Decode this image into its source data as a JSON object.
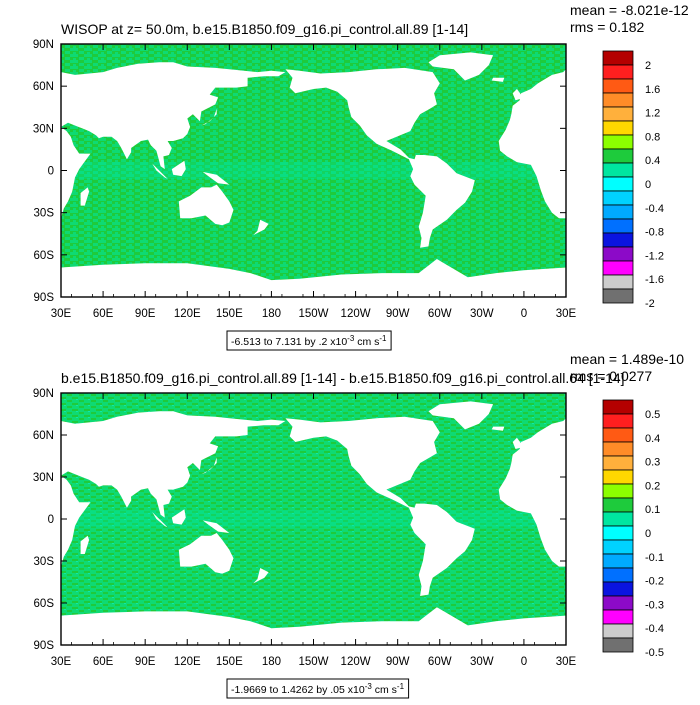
{
  "chart_data": [
    {
      "type": "heatmap",
      "title": "WISOP at z=  50.0m, b.e15.B1850.f09_g16.pi_control.all.89 [1-14]",
      "stats": {
        "mean": "mean = -8.021e-12",
        "rms": "rms = 0.182"
      },
      "x_ticks": [
        "30E",
        "60E",
        "90E",
        "120E",
        "150E",
        "180",
        "150W",
        "120W",
        "90W",
        "60W",
        "30W",
        "0",
        "30E"
      ],
      "y_ticks": [
        "90N",
        "60N",
        "30N",
        "0",
        "30S",
        "60S",
        "90S"
      ],
      "xlim": [
        30,
        390
      ],
      "ylim": [
        -90,
        90
      ],
      "range_label": "-6.513 to 7.131 by .2 x10",
      "range_exp": "-3",
      "range_unit": " cm s",
      "range_unit_exp": "-1",
      "colorbar": {
        "labels": [
          "2",
          "1.6",
          "1.2",
          "0.8",
          "0.4",
          "0",
          "-0.4",
          "-0.8",
          "-1.2",
          "-1.6",
          "-2"
        ],
        "colors": [
          "#b40000",
          "#ff1f1f",
          "#ff5a14",
          "#ff8c28",
          "#ffb03c",
          "#ffd700",
          "#8cff00",
          "#1ecb3c",
          "#00e6a0",
          "#00ffff",
          "#00d2ff",
          "#00aaff",
          "#0070ff",
          "#0a14e0",
          "#8c0ac8",
          "#ff00ff",
          "#cccccc",
          "#707070"
        ]
      },
      "grid": false
    },
    {
      "type": "heatmap",
      "title": "b.e15.B1850.f09_g16.pi_control.all.89 [1-14] - b.e15.B1850.f09_g16.pi_control.all.64 [1-14]",
      "stats": {
        "mean": "mean = 1.489e-10",
        "rms": "rms = 0.0277"
      },
      "x_ticks": [
        "30E",
        "60E",
        "90E",
        "120E",
        "150E",
        "180",
        "150W",
        "120W",
        "90W",
        "60W",
        "30W",
        "0",
        "30E"
      ],
      "y_ticks": [
        "90N",
        "60N",
        "30N",
        "0",
        "30S",
        "60S",
        "90S"
      ],
      "xlim": [
        30,
        390
      ],
      "ylim": [
        -90,
        90
      ],
      "range_label": "-1.9669 to 1.4262 by .05 x10",
      "range_exp": "-3",
      "range_unit": " cm s",
      "range_unit_exp": "-1",
      "colorbar": {
        "labels": [
          "0.5",
          "0.4",
          "0.3",
          "0.2",
          "0.1",
          "0",
          "-0.1",
          "-0.2",
          "-0.3",
          "-0.4",
          "-0.5"
        ],
        "colors": [
          "#b40000",
          "#ff1f1f",
          "#ff5a14",
          "#ff8c28",
          "#ffb03c",
          "#ffd700",
          "#8cff00",
          "#1ecb3c",
          "#00e6a0",
          "#00ffff",
          "#00d2ff",
          "#00aaff",
          "#0070ff",
          "#0a14e0",
          "#8c0ac8",
          "#ff00ff",
          "#cccccc",
          "#707070"
        ]
      },
      "grid": false
    }
  ]
}
